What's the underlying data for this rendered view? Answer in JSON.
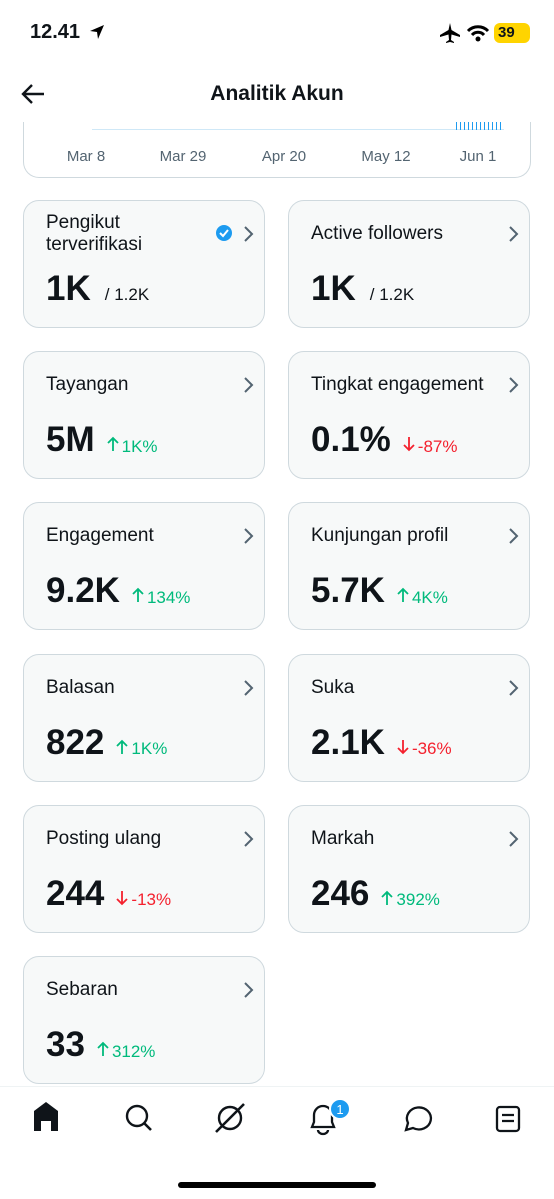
{
  "status_bar": {
    "time": "12.41",
    "battery": "39"
  },
  "header": {
    "title": "Analitik Akun"
  },
  "chart_axis": {
    "labels": [
      "Mar 8",
      "Mar 29",
      "Apr 20",
      "May 12",
      "Jun 1"
    ]
  },
  "cards": [
    {
      "title": "Pengikut terverifikasi",
      "value": "1K",
      "total": "/ 1.2K",
      "verified": true
    },
    {
      "title": "Active followers",
      "value": "1K",
      "total": "/ 1.2K"
    },
    {
      "title": "Tayangan",
      "value": "5M",
      "change": "1K%",
      "direction": "up",
      "color": "#00ba7c"
    },
    {
      "title": "Tingkat engagement",
      "value": "0.1%",
      "change": "-87%",
      "direction": "down",
      "color": "#f4212e"
    },
    {
      "title": "Engagement",
      "value": "9.2K",
      "change": "134%",
      "direction": "up",
      "color": "#00ba7c"
    },
    {
      "title": "Kunjungan profil",
      "value": "5.7K",
      "change": "4K%",
      "direction": "up",
      "color": "#00ba7c"
    },
    {
      "title": "Balasan",
      "value": "822",
      "change": "1K%",
      "direction": "up",
      "color": "#00ba7c"
    },
    {
      "title": "Suka",
      "value": "2.1K",
      "change": "-36%",
      "direction": "down",
      "color": "#f4212e"
    },
    {
      "title": "Posting ulang",
      "value": "244",
      "change": "-13%",
      "direction": "down",
      "color": "#f4212e"
    },
    {
      "title": "Markah",
      "value": "246",
      "change": "392%",
      "direction": "up",
      "color": "#00ba7c"
    },
    {
      "title": "Sebaran",
      "value": "33",
      "change": "312%",
      "direction": "up",
      "color": "#00ba7c"
    }
  ],
  "nav": {
    "notification_badge": "1"
  }
}
